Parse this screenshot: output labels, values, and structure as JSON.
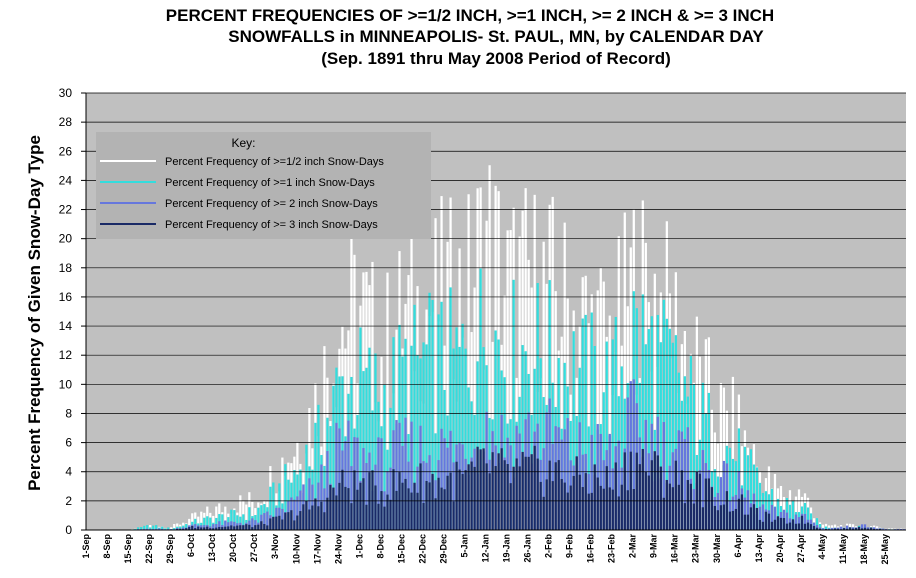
{
  "title_lines": [
    "PERCENT FREQUENCIES OF >=1/2 INCH, >=1 INCH, >= 2 INCH & >= 3 INCH",
    "SNOWFALLS in MINNEAPOLIS- St. PAUL, MN, by CALENDAR DAY",
    "(Sep. 1891 thru May 2008 Period of Record)"
  ],
  "chart_data": {
    "type": "bar",
    "title": "PERCENT FREQUENCIES OF >=1/2 INCH, >=1 INCH, >= 2 INCH & >= 3 INCH SNOWFALLS in MINNEAPOLIS- St. PAUL, MN, by CALENDAR DAY (Sep. 1891 thru May 2008 Period of Record)",
    "xlabel": "",
    "ylabel": "Percent Frequency of Given Snow-Day Type",
    "ylim": [
      0,
      30
    ],
    "yticks": [
      0,
      2,
      4,
      6,
      8,
      10,
      12,
      14,
      16,
      18,
      20,
      22,
      24,
      26,
      28,
      30
    ],
    "grid": true,
    "legend_title": "Key:",
    "legend_position": "top-left",
    "x_tick_labels": [
      "1-Sep",
      "8-Sep",
      "15-Sep",
      "22-Sep",
      "29-Sep",
      "6-Oct",
      "13-Oct",
      "20-Oct",
      "27-Oct",
      "3-Nov",
      "10-Nov",
      "17-Nov",
      "24-Nov",
      "1-Dec",
      "8-Dec",
      "15-Dec",
      "22-Dec",
      "29-Dec",
      "5-Jan",
      "12-Jan",
      "19-Jan",
      "26-Jan",
      "2-Feb",
      "9-Feb",
      "16-Feb",
      "23-Feb",
      "2-Mar",
      "9-Mar",
      "16-Mar",
      "23-Mar",
      "30-Mar",
      "6-Apr",
      "13-Apr",
      "20-Apr",
      "27-Apr",
      "4-May",
      "11-May",
      "18-May",
      "25-May"
    ],
    "x_tick_step_days": 7,
    "n_days": 273,
    "colors": {
      "half_inch": "#ffffff",
      "one_inch": "#33dddd",
      "two_inch": "#6677dd",
      "three_inch": "#1a2a66",
      "plot_background": "#c0c0c0",
      "grid": "#000000"
    },
    "series": [
      {
        "name": "Percent Frequency of >=1/2 inch Snow-Days",
        "color": "#ffffff",
        "weekly_values": [
          0,
          0,
          0,
          0.3,
          0.2,
          0.8,
          1.3,
          1.8,
          2.0,
          4.0,
          6.0,
          9.0,
          14.0,
          15.0,
          12.0,
          14.5,
          15.0,
          16.0,
          16.0,
          20.0,
          16.5,
          17.0,
          16.5,
          15.0,
          14.0,
          13.0,
          17.0,
          16.0,
          14.0,
          11.0,
          8.0,
          7.0,
          4.0,
          2.5,
          2.5,
          0.3,
          0.3,
          0.3,
          0.1
        ]
      },
      {
        "name": "Percent Frequency of >=1 inch Snow-Days",
        "color": "#33dddd",
        "weekly_values": [
          0,
          0,
          0,
          0.3,
          0.1,
          0.5,
          0.8,
          1.0,
          1.2,
          2.5,
          4.0,
          6.0,
          9.5,
          10.0,
          9.0,
          10.5,
          11.5,
          11.5,
          11.5,
          14.0,
          12.0,
          12.5,
          12.0,
          11.0,
          10.5,
          10.0,
          13.5,
          12.0,
          10.5,
          8.0,
          6.0,
          5.0,
          3.0,
          1.8,
          1.5,
          0.2,
          0.2,
          0.2,
          0.05
        ]
      },
      {
        "name": "Percent Frequency of >= 2 inch Snow-Days",
        "color": "#6677dd",
        "weekly_values": [
          0,
          0,
          0,
          0.1,
          0.05,
          0.3,
          0.4,
          0.5,
          0.6,
          1.2,
          2.0,
          3.0,
          5.5,
          5.0,
          4.5,
          5.5,
          5.5,
          5.5,
          5.5,
          7.0,
          6.0,
          6.5,
          6.5,
          5.5,
          5.5,
          5.0,
          7.5,
          6.0,
          5.5,
          4.5,
          3.5,
          2.8,
          1.5,
          1.0,
          1.0,
          0.1,
          0.2,
          0.3,
          0.05
        ]
      },
      {
        "name": "Percent Frequency of >= 3 inch Snow-Days",
        "color": "#1a2a66",
        "weekly_values": [
          0,
          0,
          0,
          0,
          0,
          0.2,
          0.2,
          0.3,
          0.3,
          0.7,
          1.2,
          1.8,
          3.0,
          3.0,
          2.7,
          3.3,
          3.3,
          3.3,
          3.5,
          4.5,
          3.8,
          4.0,
          4.0,
          3.5,
          3.5,
          3.2,
          5.0,
          4.0,
          3.5,
          3.0,
          2.2,
          1.8,
          1.0,
          0.6,
          0.7,
          0.05,
          0.1,
          0.2,
          0
        ]
      }
    ]
  }
}
